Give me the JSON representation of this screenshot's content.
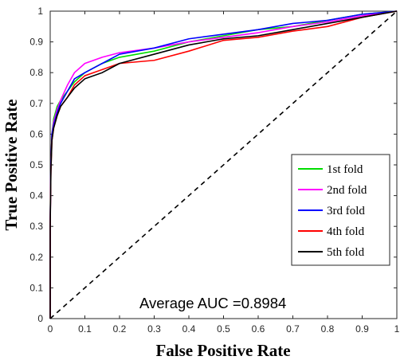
{
  "chart_data": {
    "type": "line",
    "title": "",
    "xlabel": "False Positive Rate",
    "ylabel": "True Positive Rate",
    "xlim": [
      0,
      1
    ],
    "ylim": [
      0,
      1
    ],
    "xticks": [
      "0",
      "0.1",
      "0.2",
      "0.3",
      "0.4",
      "0.5",
      "0.6",
      "0.7",
      "0.8",
      "0.9",
      "1"
    ],
    "yticks": [
      "0",
      "0.1",
      "0.2",
      "0.3",
      "0.4",
      "0.5",
      "0.6",
      "0.7",
      "0.8",
      "0.9",
      "1"
    ],
    "grid": false,
    "legend_position": "lower-right",
    "annotation": "Average AUC =0.8984",
    "series": [
      {
        "name": "1st  fold",
        "color": "#00dd00",
        "points": [
          [
            0,
            0
          ],
          [
            0,
            0.33
          ],
          [
            0.002,
            0.5
          ],
          [
            0.005,
            0.6
          ],
          [
            0.01,
            0.65
          ],
          [
            0.02,
            0.69
          ],
          [
            0.03,
            0.71
          ],
          [
            0.05,
            0.74
          ],
          [
            0.07,
            0.77
          ],
          [
            0.1,
            0.8
          ],
          [
            0.15,
            0.83
          ],
          [
            0.2,
            0.85
          ],
          [
            0.3,
            0.87
          ],
          [
            0.4,
            0.9
          ],
          [
            0.5,
            0.92
          ],
          [
            0.6,
            0.94
          ],
          [
            0.7,
            0.95
          ],
          [
            0.8,
            0.97
          ],
          [
            0.9,
            0.99
          ],
          [
            1,
            1
          ]
        ]
      },
      {
        "name": "2nd fold",
        "color": "#ff00ff",
        "points": [
          [
            0,
            0
          ],
          [
            0,
            0.32
          ],
          [
            0.002,
            0.5
          ],
          [
            0.005,
            0.6
          ],
          [
            0.01,
            0.64
          ],
          [
            0.02,
            0.68
          ],
          [
            0.03,
            0.71
          ],
          [
            0.05,
            0.76
          ],
          [
            0.07,
            0.8
          ],
          [
            0.1,
            0.83
          ],
          [
            0.15,
            0.85
          ],
          [
            0.2,
            0.865
          ],
          [
            0.3,
            0.88
          ],
          [
            0.4,
            0.9
          ],
          [
            0.5,
            0.915
          ],
          [
            0.6,
            0.93
          ],
          [
            0.7,
            0.95
          ],
          [
            0.8,
            0.965
          ],
          [
            0.9,
            0.985
          ],
          [
            1,
            1
          ]
        ]
      },
      {
        "name": "3rd  fold",
        "color": "#0000ff",
        "points": [
          [
            0,
            0
          ],
          [
            0,
            0.31
          ],
          [
            0.002,
            0.5
          ],
          [
            0.005,
            0.6
          ],
          [
            0.01,
            0.63
          ],
          [
            0.02,
            0.67
          ],
          [
            0.03,
            0.7
          ],
          [
            0.05,
            0.74
          ],
          [
            0.07,
            0.78
          ],
          [
            0.1,
            0.8
          ],
          [
            0.15,
            0.83
          ],
          [
            0.2,
            0.86
          ],
          [
            0.3,
            0.88
          ],
          [
            0.4,
            0.91
          ],
          [
            0.5,
            0.925
          ],
          [
            0.6,
            0.94
          ],
          [
            0.7,
            0.96
          ],
          [
            0.8,
            0.97
          ],
          [
            0.9,
            0.99
          ],
          [
            1,
            1
          ]
        ]
      },
      {
        "name": "4th  fold",
        "color": "#ff0000",
        "points": [
          [
            0,
            0
          ],
          [
            0,
            0.31
          ],
          [
            0.002,
            0.48
          ],
          [
            0.005,
            0.58
          ],
          [
            0.01,
            0.62
          ],
          [
            0.02,
            0.66
          ],
          [
            0.03,
            0.69
          ],
          [
            0.05,
            0.72
          ],
          [
            0.07,
            0.76
          ],
          [
            0.1,
            0.79
          ],
          [
            0.15,
            0.81
          ],
          [
            0.2,
            0.83
          ],
          [
            0.3,
            0.84
          ],
          [
            0.4,
            0.87
          ],
          [
            0.5,
            0.905
          ],
          [
            0.6,
            0.915
          ],
          [
            0.7,
            0.935
          ],
          [
            0.8,
            0.95
          ],
          [
            0.9,
            0.98
          ],
          [
            1,
            1
          ]
        ]
      },
      {
        "name": "5th  fold",
        "color": "#000000",
        "points": [
          [
            0,
            0
          ],
          [
            0,
            0.3
          ],
          [
            0.002,
            0.48
          ],
          [
            0.005,
            0.58
          ],
          [
            0.01,
            0.62
          ],
          [
            0.02,
            0.66
          ],
          [
            0.03,
            0.69
          ],
          [
            0.05,
            0.72
          ],
          [
            0.07,
            0.75
          ],
          [
            0.1,
            0.78
          ],
          [
            0.15,
            0.8
          ],
          [
            0.2,
            0.83
          ],
          [
            0.3,
            0.86
          ],
          [
            0.4,
            0.89
          ],
          [
            0.5,
            0.91
          ],
          [
            0.6,
            0.92
          ],
          [
            0.7,
            0.94
          ],
          [
            0.8,
            0.96
          ],
          [
            0.9,
            0.98
          ],
          [
            1,
            1
          ]
        ]
      }
    ],
    "reference_line": {
      "style": "dashed",
      "color": "#000000",
      "points": [
        [
          0,
          0
        ],
        [
          1,
          1
        ]
      ]
    }
  }
}
